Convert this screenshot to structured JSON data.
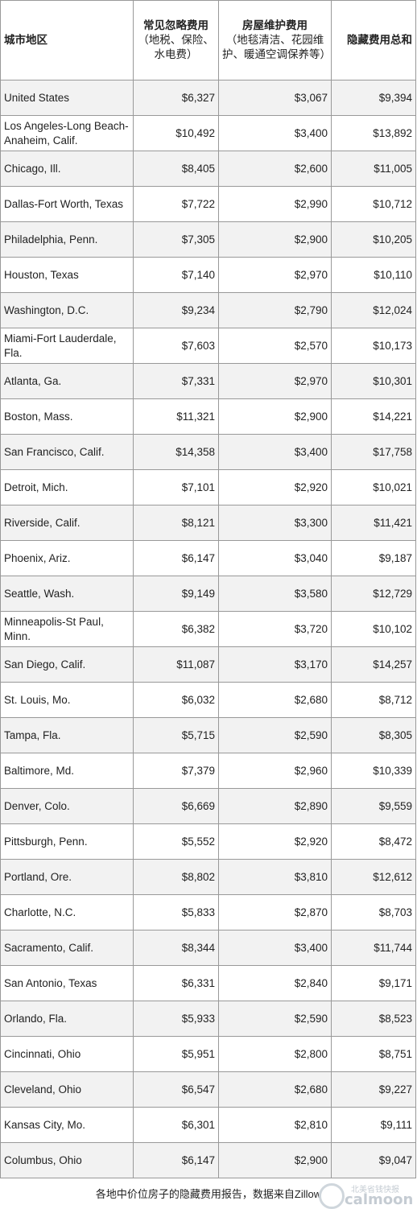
{
  "header": {
    "col1": "城市地区",
    "col2_main": "常见忽略费用",
    "col2_sub": "（地税、保险、水电费）",
    "col3_main": "房屋维护费用",
    "col3_sub": "（地毯清洁、花园维护、暖通空调保养等）",
    "col4": "隐藏费用总和"
  },
  "rows": [
    {
      "city": "United States",
      "ignored": "$6,327",
      "maintenance": "$3,067",
      "total": "$9,394"
    },
    {
      "city": "Los Angeles-Long Beach-Anaheim, Calif.",
      "ignored": "$10,492",
      "maintenance": "$3,400",
      "total": "$13,892"
    },
    {
      "city": "Chicago, Ill.",
      "ignored": "$8,405",
      "maintenance": "$2,600",
      "total": "$11,005"
    },
    {
      "city": "Dallas-Fort Worth, Texas",
      "ignored": "$7,722",
      "maintenance": "$2,990",
      "total": "$10,712"
    },
    {
      "city": "Philadelphia, Penn.",
      "ignored": "$7,305",
      "maintenance": "$2,900",
      "total": "$10,205"
    },
    {
      "city": "Houston, Texas",
      "ignored": "$7,140",
      "maintenance": "$2,970",
      "total": "$10,110"
    },
    {
      "city": "Washington, D.C.",
      "ignored": "$9,234",
      "maintenance": "$2,790",
      "total": "$12,024"
    },
    {
      "city": "Miami-Fort Lauderdale, Fla.",
      "ignored": "$7,603",
      "maintenance": "$2,570",
      "total": "$10,173"
    },
    {
      "city": "Atlanta, Ga.",
      "ignored": "$7,331",
      "maintenance": "$2,970",
      "total": "$10,301"
    },
    {
      "city": "Boston, Mass.",
      "ignored": "$11,321",
      "maintenance": "$2,900",
      "total": "$14,221"
    },
    {
      "city": "San Francisco, Calif.",
      "ignored": "$14,358",
      "maintenance": "$3,400",
      "total": "$17,758"
    },
    {
      "city": "Detroit, Mich.",
      "ignored": "$7,101",
      "maintenance": "$2,920",
      "total": "$10,021"
    },
    {
      "city": "Riverside, Calif.",
      "ignored": "$8,121",
      "maintenance": "$3,300",
      "total": "$11,421"
    },
    {
      "city": "Phoenix, Ariz.",
      "ignored": "$6,147",
      "maintenance": "$3,040",
      "total": "$9,187"
    },
    {
      "city": "Seattle, Wash.",
      "ignored": "$9,149",
      "maintenance": "$3,580",
      "total": "$12,729"
    },
    {
      "city": "Minneapolis-St Paul, Minn.",
      "ignored": "$6,382",
      "maintenance": "$3,720",
      "total": "$10,102"
    },
    {
      "city": "San Diego, Calif.",
      "ignored": "$11,087",
      "maintenance": "$3,170",
      "total": "$14,257"
    },
    {
      "city": "St. Louis, Mo.",
      "ignored": "$6,032",
      "maintenance": "$2,680",
      "total": "$8,712"
    },
    {
      "city": "Tampa, Fla.",
      "ignored": "$5,715",
      "maintenance": "$2,590",
      "total": "$8,305"
    },
    {
      "city": "Baltimore, Md.",
      "ignored": "$7,379",
      "maintenance": "$2,960",
      "total": "$10,339"
    },
    {
      "city": "Denver, Colo.",
      "ignored": "$6,669",
      "maintenance": "$2,890",
      "total": "$9,559"
    },
    {
      "city": "Pittsburgh, Penn.",
      "ignored": "$5,552",
      "maintenance": "$2,920",
      "total": "$8,472"
    },
    {
      "city": "Portland, Ore.",
      "ignored": "$8,802",
      "maintenance": "$3,810",
      "total": "$12,612"
    },
    {
      "city": "Charlotte, N.C.",
      "ignored": "$5,833",
      "maintenance": "$2,870",
      "total": "$8,703"
    },
    {
      "city": "Sacramento, Calif.",
      "ignored": "$8,344",
      "maintenance": "$3,400",
      "total": "$11,744"
    },
    {
      "city": "San Antonio, Texas",
      "ignored": "$6,331",
      "maintenance": "$2,840",
      "total": "$9,171"
    },
    {
      "city": "Orlando, Fla.",
      "ignored": "$5,933",
      "maintenance": "$2,590",
      "total": "$8,523"
    },
    {
      "city": "Cincinnati, Ohio",
      "ignored": "$5,951",
      "maintenance": "$2,800",
      "total": "$8,751"
    },
    {
      "city": "Cleveland, Ohio",
      "ignored": "$6,547",
      "maintenance": "$2,680",
      "total": "$9,227"
    },
    {
      "city": "Kansas City, Mo.",
      "ignored": "$6,301",
      "maintenance": "$2,810",
      "total": "$9,111"
    },
    {
      "city": "Columbus, Ohio",
      "ignored": "$6,147",
      "maintenance": "$2,900",
      "total": "$9,047"
    }
  ],
  "footer": "各地中价位房子的隐藏费用报告，数据来自Zillow",
  "watermark": {
    "brand": "calmoon",
    "small": "北美省钱快报"
  }
}
